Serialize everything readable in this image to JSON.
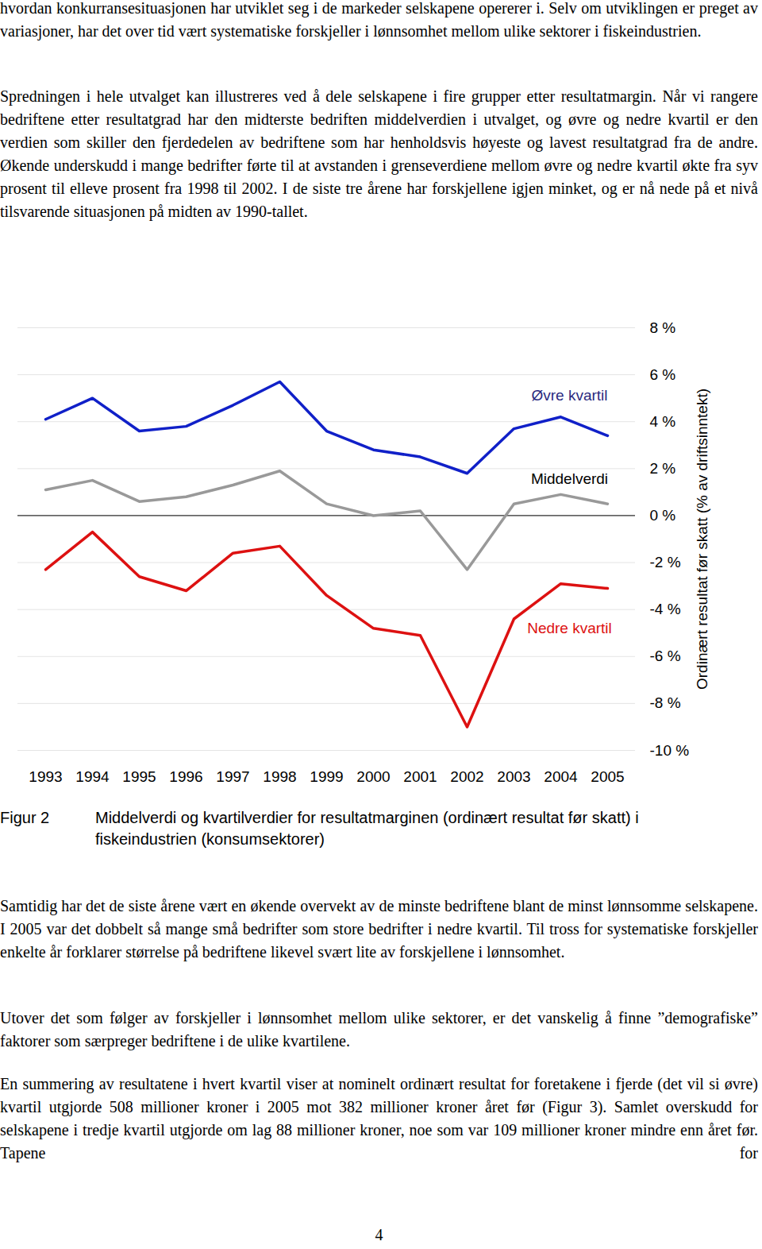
{
  "paragraphs_before": [
    "hvordan konkurransesituasjonen har utviklet seg i de markeder selskapene opererer i. Selv om utviklingen er preget av variasjoner, har det over tid vært systematiske forskjeller i lønnsomhet mellom ulike sektorer i fiskeindustrien.",
    "Spredningen i hele utvalget kan illustreres ved å dele selskapene i fire grupper etter resultatmargin. Når vi rangere bedriftene etter resultatgrad har den midterste bedriften middelverdien i utvalget, og øvre og nedre kvartil er den verdien som skiller den fjerdedelen av bedriftene som har henholdsvis høyeste og lavest resultatgrad fra de andre. Økende underskudd i mange bedrifter førte til at avstanden i grenseverdiene mellom øvre og nedre kvartil økte fra syv prosent til elleve prosent fra 1998 til 2002. I de siste tre årene har forskjellene igjen minket, og er nå nede på et nivå tilsvarende situasjonen på midten av 1990-tallet."
  ],
  "chart_data": {
    "type": "line",
    "ylabel": "Ordinært resultat før skatt (% av driftsinntekt)",
    "x": [
      1993,
      1994,
      1995,
      1996,
      1997,
      1998,
      1999,
      2000,
      2001,
      2002,
      2003,
      2004,
      2005
    ],
    "series": [
      {
        "name": "Øvre kvartil",
        "color": "#1020c8",
        "values": [
          4.1,
          5.0,
          3.6,
          3.8,
          4.7,
          5.7,
          3.6,
          2.8,
          2.5,
          1.8,
          3.7,
          4.2,
          3.4
        ]
      },
      {
        "name": "Middelverdi",
        "color": "#999999",
        "values": [
          1.1,
          1.5,
          0.6,
          0.8,
          1.3,
          1.9,
          0.5,
          0.0,
          0.2,
          -2.3,
          0.5,
          0.9,
          0.5
        ]
      },
      {
        "name": "Nedre kvartil",
        "color": "#dd1111",
        "values": [
          -2.3,
          -0.7,
          -2.6,
          -3.2,
          -1.6,
          -1.3,
          -3.4,
          -4.8,
          -5.1,
          -9.0,
          -4.4,
          -2.9,
          -3.1
        ]
      }
    ],
    "ylim": [
      -10,
      8
    ],
    "yticks": [
      {
        "value": 8,
        "label": "8 %"
      },
      {
        "value": 6,
        "label": "6 %"
      },
      {
        "value": 4,
        "label": "4 %"
      },
      {
        "value": 2,
        "label": "2 %"
      },
      {
        "value": 0,
        "label": "0 %"
      },
      {
        "value": -2,
        "label": "-2 %"
      },
      {
        "value": -4,
        "label": "-4 %"
      },
      {
        "value": -6,
        "label": "-6 %"
      },
      {
        "value": -8,
        "label": "-8 %"
      },
      {
        "value": -10,
        "label": "-10 %"
      }
    ],
    "grid": true
  },
  "caption": {
    "label": "Figur 2",
    "text": "Middelverdi og kvartilverdier for resultatmarginen (ordinært resultat før skatt) i fiskeindustrien (konsumsektorer)"
  },
  "paragraphs_after": [
    "Samtidig har det de siste årene vært en økende overvekt av de minste bedriftene blant de minst lønnsomme selskapene. I 2005 var det dobbelt så mange små bedrifter som store bedrifter i nedre kvartil. Til tross for systematiske forskjeller enkelte år forklarer størrelse på bedriftene likevel svært lite av forskjellene i lønnsomhet.",
    "Utover det som følger av forskjeller i lønnsomhet mellom ulike sektorer, er det vanskelig å finne ”demografiske” faktorer som særpreger bedriftene i de ulike kvartilene.",
    "En summering av resultatene i hvert kvartil viser at nominelt ordinært resultat for foretakene i fjerde (det vil si øvre) kvartil utgjorde 508 millioner kroner i 2005 mot 382 millioner kroner året før (Figur 3). Samlet overskudd for selskapene i tredje kvartil utgjorde om lag 88 millioner kroner, noe som var 109 millioner kroner mindre enn året før. Tapene for"
  ],
  "page_number": "4"
}
